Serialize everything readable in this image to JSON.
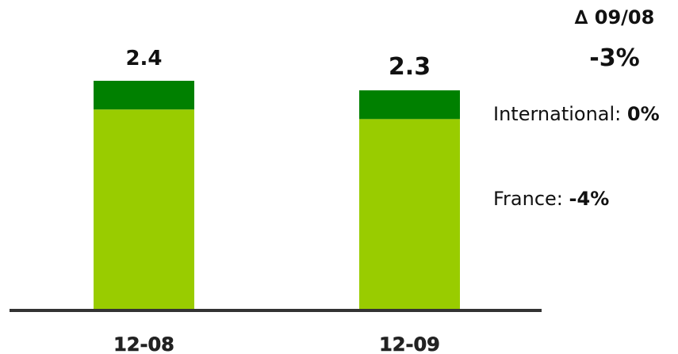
{
  "chart_data": {
    "type": "bar",
    "stacked": true,
    "categories": [
      "12-08",
      "12-09"
    ],
    "series": [
      {
        "name": "France",
        "values": [
          2.1,
          2.0
        ],
        "color": "#99cc00"
      },
      {
        "name": "International",
        "values": [
          0.3,
          0.3
        ],
        "color": "#008000"
      }
    ],
    "totals": [
      "2.4",
      "2.3"
    ],
    "ylim": [
      0,
      2.4
    ],
    "grid": false,
    "legend": "none"
  },
  "delta": {
    "title": "∆ 09/08",
    "value": "-3%"
  },
  "segments": {
    "international": {
      "label": "International: ",
      "pct": "0%"
    },
    "france": {
      "label": "France: ",
      "pct": "-4%"
    }
  },
  "colors": {
    "france": "#99cc00",
    "international": "#008000",
    "axis": "#333333"
  }
}
